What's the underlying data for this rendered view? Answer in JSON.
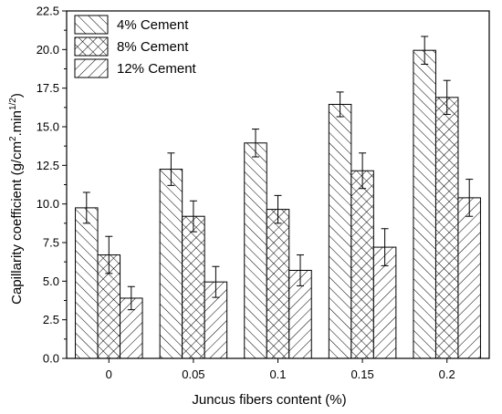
{
  "chart_data": {
    "type": "bar",
    "title": "",
    "xlabel": "Juncus fibers content (%)",
    "ylabel_main": "Capillarity coefficient (g/cm",
    "ylabel_sup1": "2",
    "ylabel_mid": ".min",
    "ylabel_sup2": "1/2",
    "ylabel_end": ")",
    "categories": [
      "0",
      "0.05",
      "0.1",
      "0.15",
      "0.2"
    ],
    "ylim": [
      0,
      22.5
    ],
    "yticks": [
      "0.0",
      "2.5",
      "5.0",
      "7.5",
      "10.0",
      "12.5",
      "15.0",
      "17.5",
      "20.0",
      "22.5"
    ],
    "legend_position": "top-left",
    "grid": false,
    "series": [
      {
        "name": "4% Cement",
        "pattern": "diagonal-lines",
        "values": [
          9.75,
          12.25,
          13.95,
          16.45,
          19.95
        ],
        "errors": [
          1.0,
          1.05,
          0.9,
          0.8,
          0.9
        ]
      },
      {
        "name": "8% Cement",
        "pattern": "crosshatch",
        "values": [
          6.7,
          9.2,
          9.65,
          12.15,
          16.9
        ],
        "errors": [
          1.2,
          1.0,
          0.9,
          1.15,
          1.1
        ]
      },
      {
        "name": "12% Cement",
        "pattern": "back-diagonal-lines",
        "values": [
          3.9,
          4.95,
          5.7,
          7.2,
          10.4
        ],
        "errors": [
          0.75,
          1.0,
          1.0,
          1.2,
          1.2
        ]
      }
    ]
  }
}
